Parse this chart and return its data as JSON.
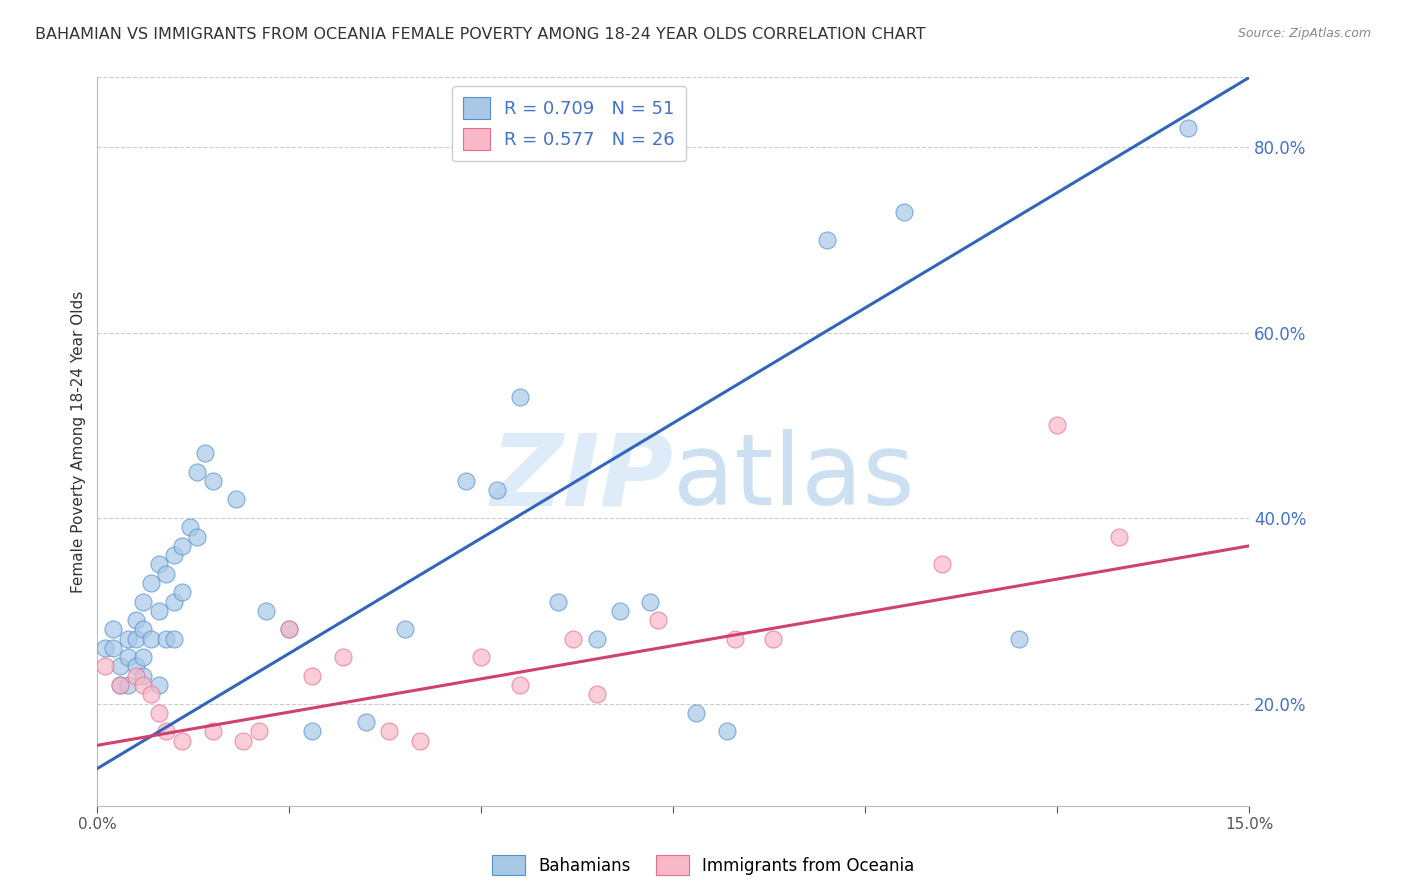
{
  "title": "BAHAMIAN VS IMMIGRANTS FROM OCEANIA FEMALE POVERTY AMONG 18-24 YEAR OLDS CORRELATION CHART",
  "source": "Source: ZipAtlas.com",
  "ylabel": "Female Poverty Among 18-24 Year Olds",
  "legend_label1": "Bahamians",
  "legend_label2": "Immigrants from Oceania",
  "R1": 0.709,
  "N1": 51,
  "R2": 0.577,
  "N2": 26,
  "blue_scatter_color": "#a8c8e8",
  "blue_edge_color": "#5590c8",
  "blue_line_color": "#3366bb",
  "pink_scatter_color": "#f8b8c8",
  "pink_edge_color": "#e07090",
  "pink_line_color": "#d04070",
  "xlim": [
    0.0,
    0.15
  ],
  "ylim": [
    0.09,
    0.875
  ],
  "right_yticks": [
    0.2,
    0.4,
    0.6,
    0.8
  ],
  "xtick_positions": [
    0.0,
    0.025,
    0.05,
    0.075,
    0.1,
    0.125,
    0.15
  ],
  "blue_scatter_x": [
    0.001,
    0.002,
    0.002,
    0.003,
    0.003,
    0.004,
    0.004,
    0.004,
    0.005,
    0.005,
    0.005,
    0.006,
    0.006,
    0.006,
    0.006,
    0.007,
    0.007,
    0.008,
    0.008,
    0.008,
    0.009,
    0.009,
    0.01,
    0.01,
    0.01,
    0.011,
    0.011,
    0.012,
    0.013,
    0.013,
    0.014,
    0.015,
    0.018,
    0.022,
    0.025,
    0.028,
    0.035,
    0.04,
    0.048,
    0.052,
    0.055,
    0.06,
    0.065,
    0.068,
    0.072,
    0.078,
    0.082,
    0.095,
    0.105,
    0.12,
    0.142
  ],
  "blue_scatter_y": [
    0.26,
    0.28,
    0.26,
    0.24,
    0.22,
    0.27,
    0.25,
    0.22,
    0.29,
    0.27,
    0.24,
    0.31,
    0.28,
    0.25,
    0.23,
    0.33,
    0.27,
    0.35,
    0.3,
    0.22,
    0.34,
    0.27,
    0.36,
    0.31,
    0.27,
    0.37,
    0.32,
    0.39,
    0.45,
    0.38,
    0.47,
    0.44,
    0.42,
    0.3,
    0.28,
    0.17,
    0.18,
    0.28,
    0.44,
    0.43,
    0.53,
    0.31,
    0.27,
    0.3,
    0.31,
    0.19,
    0.17,
    0.7,
    0.73,
    0.27,
    0.82
  ],
  "pink_scatter_x": [
    0.001,
    0.003,
    0.005,
    0.006,
    0.007,
    0.008,
    0.009,
    0.011,
    0.015,
    0.019,
    0.021,
    0.025,
    0.028,
    0.032,
    0.038,
    0.042,
    0.05,
    0.055,
    0.062,
    0.065,
    0.073,
    0.083,
    0.088,
    0.11,
    0.125,
    0.133
  ],
  "pink_scatter_y": [
    0.24,
    0.22,
    0.23,
    0.22,
    0.21,
    0.19,
    0.17,
    0.16,
    0.17,
    0.16,
    0.17,
    0.28,
    0.23,
    0.25,
    0.17,
    0.16,
    0.25,
    0.22,
    0.27,
    0.21,
    0.29,
    0.27,
    0.27,
    0.35,
    0.5,
    0.38
  ],
  "blue_line_x": [
    0.0,
    0.15
  ],
  "blue_line_y": [
    0.13,
    0.875
  ],
  "pink_line_x": [
    0.0,
    0.15
  ],
  "pink_line_y": [
    0.155,
    0.37
  ],
  "background_color": "#ffffff",
  "grid_color": "#cccccc",
  "watermark_color": "#daeaf8",
  "axis_color": "#4472c4",
  "title_fontsize": 11.5,
  "axis_fontsize": 11,
  "tick_fontsize": 11,
  "legend_fontsize": 13,
  "legend_R_color": "#4472c4"
}
